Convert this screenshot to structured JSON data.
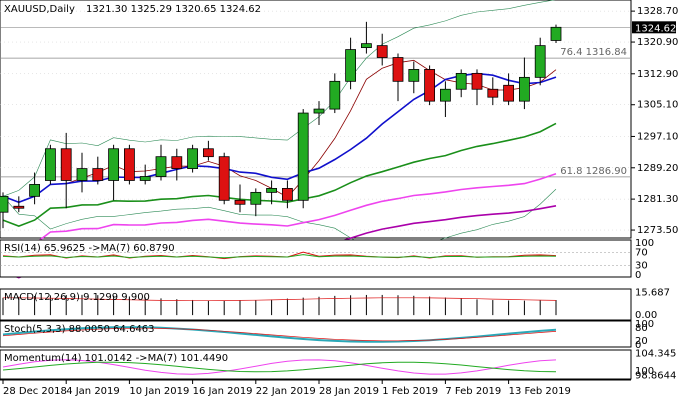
{
  "header": {
    "symbol": "XAUUSD,Daily",
    "ohlc": "1321.30 1325.29 1320.65 1324.62"
  },
  "price_axis": {
    "ticks": [
      "1328.70",
      "1320.90",
      "1312.90",
      "1305.10",
      "1297.10",
      "1289.20",
      "1281.30",
      "1273.50"
    ],
    "current_price": "1324.62",
    "current_price_color": "#000000"
  },
  "fib_levels": [
    {
      "label": "76.4 1316.84",
      "value": 1316.84
    },
    {
      "label": "61.8 1286.90",
      "value": 1286.9
    }
  ],
  "date_axis": [
    "28 Dec 2018",
    "4 Jan 2019",
    "10 Jan 2019",
    "16 Jan 2019",
    "22 Jan 2019",
    "28 Jan 2019",
    "1 Feb 2019",
    "7 Feb 2019",
    "13 Feb 2019"
  ],
  "indicators": {
    "rsi": {
      "label": "RSI(14) 65.9625 ->MA(7) 60.8790",
      "ticks": [
        "100",
        "70",
        "30",
        "0"
      ]
    },
    "macd": {
      "label": "MACD(12,26,9) 9.1299 9.900",
      "ticks": [
        "15.687",
        "0.00"
      ]
    },
    "stoch": {
      "label": "Stoch(5,3,3) 88.0050 64.6463",
      "ticks": [
        "100",
        "80",
        "20",
        "0"
      ]
    },
    "momentum": {
      "label": "Momentum(14) 101.0142 ->MA(7) 101.4490",
      "ticks": [
        "104.345",
        "100",
        "98.8644"
      ]
    }
  },
  "colors": {
    "bull": "#22aa22",
    "bear": "#dd1111",
    "ma_fast": "#8b0000",
    "ma_blue": "#1010cc",
    "ma_green": "#1a8f1a",
    "ma_pink": "#ee44ee",
    "ma_magenta": "#aa00aa",
    "band": "#2e8b57",
    "grid": "#cccccc"
  },
  "chart_data": {
    "type": "candlestick",
    "ylim": [
      1272,
      1331
    ],
    "candles": [
      {
        "o": 1278,
        "h": 1283,
        "l": 1274,
        "c": 1282
      },
      {
        "o": 1279.5,
        "h": 1282,
        "l": 1278,
        "c": 1279.0
      },
      {
        "o": 1282,
        "h": 1288,
        "l": 1280,
        "c": 1285
      },
      {
        "o": 1286,
        "h": 1295,
        "l": 1285,
        "c": 1294
      },
      {
        "o": 1294,
        "h": 1298,
        "l": 1279,
        "c": 1286
      },
      {
        "o": 1286,
        "h": 1293,
        "l": 1283,
        "c": 1289
      },
      {
        "o": 1289,
        "h": 1292,
        "l": 1285,
        "c": 1286
      },
      {
        "o": 1286,
        "h": 1295,
        "l": 1281,
        "c": 1294
      },
      {
        "o": 1294,
        "h": 1295,
        "l": 1285,
        "c": 1286
      },
      {
        "o": 1286,
        "h": 1290,
        "l": 1285,
        "c": 1287
      },
      {
        "o": 1287,
        "h": 1295,
        "l": 1286,
        "c": 1292
      },
      {
        "o": 1292,
        "h": 1294,
        "l": 1286,
        "c": 1289
      },
      {
        "o": 1289,
        "h": 1295,
        "l": 1288,
        "c": 1294
      },
      {
        "o": 1294,
        "h": 1296,
        "l": 1291,
        "c": 1292
      },
      {
        "o": 1292,
        "h": 1293,
        "l": 1280,
        "c": 1281
      },
      {
        "o": 1281,
        "h": 1285,
        "l": 1278,
        "c": 1280
      },
      {
        "o": 1280,
        "h": 1284,
        "l": 1277,
        "c": 1283
      },
      {
        "o": 1283,
        "h": 1286,
        "l": 1280,
        "c": 1284
      },
      {
        "o": 1284,
        "h": 1286,
        "l": 1279,
        "c": 1281
      },
      {
        "o": 1281,
        "h": 1304,
        "l": 1279,
        "c": 1303
      },
      {
        "o": 1303,
        "h": 1306,
        "l": 1300,
        "c": 1304
      },
      {
        "o": 1304,
        "h": 1313,
        "l": 1303,
        "c": 1311
      },
      {
        "o": 1311,
        "h": 1322,
        "l": 1309,
        "c": 1319
      },
      {
        "o": 1319.5,
        "h": 1326,
        "l": 1318,
        "c": 1320.5
      },
      {
        "o": 1320,
        "h": 1323,
        "l": 1315,
        "c": 1317
      },
      {
        "o": 1317,
        "h": 1318,
        "l": 1306,
        "c": 1311
      },
      {
        "o": 1311,
        "h": 1316,
        "l": 1308,
        "c": 1314
      },
      {
        "o": 1314,
        "h": 1315,
        "l": 1305,
        "c": 1306
      },
      {
        "o": 1306,
        "h": 1311,
        "l": 1302,
        "c": 1309
      },
      {
        "o": 1309,
        "h": 1314,
        "l": 1307,
        "c": 1313
      },
      {
        "o": 1313,
        "h": 1314,
        "l": 1305,
        "c": 1309
      },
      {
        "o": 1309,
        "h": 1312,
        "l": 1305,
        "c": 1307
      },
      {
        "o": 1310,
        "h": 1313,
        "l": 1305,
        "c": 1306
      },
      {
        "o": 1306,
        "h": 1317,
        "l": 1304,
        "c": 1312
      },
      {
        "o": 1312,
        "h": 1322,
        "l": 1310,
        "c": 1320
      },
      {
        "o": 1321.3,
        "h": 1325.29,
        "l": 1320.65,
        "c": 1324.62
      }
    ]
  }
}
